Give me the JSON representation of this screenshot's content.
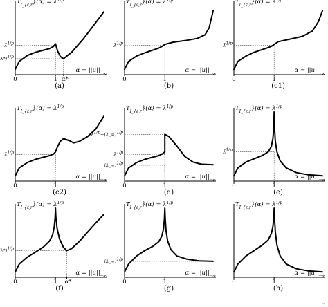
{
  "figure": {
    "footnote": "(a)"
  },
  "chart_data": [
    {
      "id": "a",
      "caption": "(a)",
      "type": "line",
      "title": "T_{I_{ε,r}}(α) = λ^{1/p}",
      "xlabel": "α = ||u||_∞",
      "x_ticks": [
        "0",
        "1",
        "α*"
      ],
      "y_labels": [
        "λ̄^{1/p}",
        "(λ*)^{1/p}"
      ],
      "y_label_pos": [
        0.55,
        0.3
      ],
      "guides": [
        [
          1,
          0.55
        ],
        [
          1.2,
          0.3
        ]
      ],
      "ylim": [
        0,
        1.3
      ],
      "xlim": [
        0,
        2.2
      ],
      "x": [
        0,
        0.1,
        0.3,
        0.5,
        0.7,
        0.85,
        0.95,
        1.0,
        1.05,
        1.12,
        1.2,
        1.4,
        1.7,
        2.0,
        2.2
      ],
      "y": [
        0.1,
        0.25,
        0.36,
        0.42,
        0.46,
        0.49,
        0.53,
        0.58,
        0.45,
        0.34,
        0.3,
        0.42,
        0.68,
        0.98,
        1.18
      ]
    },
    {
      "id": "b",
      "caption": "(b)",
      "type": "line",
      "title": "T_{I_{ε,r}}(α) = λ^{1/p}",
      "xlabel": "α = ||u||_∞",
      "x_ticks": [
        "0",
        "1"
      ],
      "y_labels": [
        "λ̄^{1/p}"
      ],
      "y_label_pos": [
        0.55
      ],
      "guides": [
        [
          1,
          0.55
        ]
      ],
      "ylim": [
        0,
        1.3
      ],
      "xlim": [
        0,
        2.2
      ],
      "x": [
        0,
        0.1,
        0.3,
        0.5,
        0.7,
        0.85,
        0.95,
        1.0,
        1.2,
        1.5,
        1.8,
        2.0,
        2.1,
        2.2
      ],
      "y": [
        0.1,
        0.25,
        0.35,
        0.41,
        0.46,
        0.5,
        0.54,
        0.57,
        0.61,
        0.64,
        0.68,
        0.75,
        0.88,
        1.2
      ]
    },
    {
      "id": "c1",
      "caption": "(c1)",
      "type": "line",
      "title": "T_{I_{ε,r}}(α) = λ^{1/p}",
      "xlabel": "α = ||u||_∞",
      "x_ticks": [
        "0",
        "1"
      ],
      "y_labels": [
        "λ̄^{1/p}"
      ],
      "y_label_pos": [
        0.55
      ],
      "guides": [
        [
          1,
          0.55
        ]
      ],
      "ylim": [
        0,
        1.3
      ],
      "xlim": [
        0,
        2.2
      ],
      "x": [
        0,
        0.1,
        0.3,
        0.5,
        0.7,
        0.85,
        0.95,
        1.0,
        1.1,
        1.4,
        1.7,
        1.95,
        2.1,
        2.2
      ],
      "y": [
        0.1,
        0.25,
        0.35,
        0.42,
        0.47,
        0.51,
        0.54,
        0.57,
        0.62,
        0.67,
        0.72,
        0.82,
        1.0,
        1.2
      ]
    },
    {
      "id": "c2",
      "caption": "(c2)",
      "type": "line",
      "title": "T_{I_{ε,r}}(α) = λ^{1/p}",
      "xlabel": "α = ||u||_∞",
      "x_ticks": [
        "0",
        "1"
      ],
      "y_labels": [
        "λ̄^{1/p}"
      ],
      "y_label_pos": [
        0.5
      ],
      "guides": [
        [
          1,
          0.5
        ]
      ],
      "ylim": [
        0,
        1.3
      ],
      "xlim": [
        0,
        2.2
      ],
      "x": [
        0,
        0.1,
        0.3,
        0.5,
        0.7,
        0.85,
        0.95,
        1.0,
        1.05,
        1.12,
        1.2,
        1.35,
        1.45,
        1.6,
        1.8,
        2.0,
        2.2
      ],
      "y": [
        0.1,
        0.25,
        0.35,
        0.41,
        0.45,
        0.48,
        0.51,
        0.55,
        0.65,
        0.75,
        0.8,
        0.76,
        0.72,
        0.75,
        0.84,
        0.98,
        1.22
      ]
    },
    {
      "id": "d",
      "caption": "(d)",
      "type": "line",
      "title": "T_{I_{ε,r}}(α) = λ^{1/p}",
      "xlabel": "α = ||u||_∞",
      "x_ticks": [
        "0",
        "1"
      ],
      "y_labels": [
        "λ̄^{1/p}+(λ_∞)^{1/p}",
        "λ̄^{1/p}",
        "(λ_∞)^{1/p}"
      ],
      "y_label_pos": [
        0.88,
        0.5,
        0.3
      ],
      "guides": [
        [
          1,
          0.88
        ],
        [
          1,
          0.5
        ],
        [
          1,
          0.3
        ]
      ],
      "ylim": [
        0,
        1.3
      ],
      "xlim": [
        0,
        2.2
      ],
      "x": [
        0,
        0.1,
        0.3,
        0.5,
        0.7,
        0.85,
        0.95,
        1.0,
        1.0,
        1.1,
        1.3,
        1.5,
        1.7,
        1.9,
        2.2
      ],
      "y": [
        0.1,
        0.25,
        0.35,
        0.41,
        0.45,
        0.48,
        0.52,
        0.55,
        0.88,
        0.84,
        0.66,
        0.46,
        0.36,
        0.32,
        0.31
      ]
    },
    {
      "id": "e",
      "caption": "(e)",
      "type": "line",
      "title": "T_{I_{ε,r}}(α) = λ^{1/p}",
      "xlabel": "α = ||u||_∞",
      "x_ticks": [
        "0",
        "1"
      ],
      "y_labels": [
        "λ̄^{1/p}"
      ],
      "y_label_pos": [
        0.55
      ],
      "guides": [
        [
          1,
          0.55
        ]
      ],
      "ylim": [
        0,
        1.3
      ],
      "xlim": [
        0,
        2.2
      ],
      "x": [
        0,
        0.1,
        0.3,
        0.5,
        0.7,
        0.85,
        0.93,
        0.97,
        0.99,
        1.0,
        1.0,
        1.01,
        1.03,
        1.07,
        1.15,
        1.3,
        1.55,
        1.85,
        2.2
      ],
      "y": [
        0.1,
        0.25,
        0.36,
        0.42,
        0.48,
        0.55,
        0.65,
        0.8,
        1.0,
        1.3,
        1.3,
        1.0,
        0.75,
        0.55,
        0.38,
        0.25,
        0.16,
        0.12,
        0.1
      ]
    },
    {
      "id": "f",
      "caption": "(f)",
      "type": "line",
      "title": "T_{I_{ε,r}}(α) = λ^{1/p}",
      "xlabel": "α = ||u||_∞",
      "x_ticks": [
        "0",
        "1",
        "α*"
      ],
      "y_labels": [
        "(λ*)^{1/p}"
      ],
      "y_label_pos": [
        0.5
      ],
      "guides": [
        [
          1.28,
          0.5
        ]
      ],
      "ylim": [
        0,
        1.3
      ],
      "xlim": [
        0,
        2.2
      ],
      "x": [
        0,
        0.1,
        0.3,
        0.5,
        0.7,
        0.85,
        0.93,
        0.97,
        0.99,
        1.0,
        1.0,
        1.01,
        1.04,
        1.1,
        1.2,
        1.28,
        1.4,
        1.6,
        1.8,
        2.0,
        2.2
      ],
      "y": [
        0.1,
        0.25,
        0.38,
        0.47,
        0.57,
        0.68,
        0.8,
        0.95,
        1.12,
        1.3,
        1.3,
        1.12,
        0.92,
        0.72,
        0.56,
        0.5,
        0.54,
        0.68,
        0.85,
        1.02,
        1.18
      ]
    },
    {
      "id": "g",
      "caption": "(g)",
      "type": "line",
      "title": "T_{I_{ε,r}}(α) = λ^{1/p}",
      "xlabel": "α = ||u||_∞",
      "x_ticks": [
        "0",
        "1"
      ],
      "y_labels": [
        "(λ_∞)^{1/p}"
      ],
      "y_label_pos": [
        0.3
      ],
      "guides": [
        [
          2.2,
          0.3
        ]
      ],
      "ylim": [
        0,
        1.3
      ],
      "xlim": [
        0,
        2.2
      ],
      "x": [
        0,
        0.1,
        0.3,
        0.5,
        0.7,
        0.85,
        0.93,
        0.97,
        0.99,
        1.0,
        1.0,
        1.01,
        1.03,
        1.07,
        1.15,
        1.3,
        1.55,
        1.85,
        2.2
      ],
      "y": [
        0.1,
        0.25,
        0.4,
        0.5,
        0.58,
        0.67,
        0.78,
        0.92,
        1.1,
        1.3,
        1.3,
        1.1,
        0.88,
        0.68,
        0.52,
        0.4,
        0.34,
        0.31,
        0.3
      ]
    },
    {
      "id": "h",
      "caption": "(h)",
      "type": "line",
      "title": "T_{I_{ε,r}}(α) = λ^{1/p}",
      "xlabel": "α = ||u||_∞",
      "x_ticks": [
        "0",
        "1"
      ],
      "y_labels": [],
      "y_label_pos": [],
      "guides": [],
      "ylim": [
        0,
        1.3
      ],
      "xlim": [
        0,
        2.2
      ],
      "x": [
        0,
        0.1,
        0.3,
        0.5,
        0.7,
        0.85,
        0.93,
        0.97,
        0.99,
        1.0,
        1.0,
        1.01,
        1.03,
        1.07,
        1.15,
        1.3,
        1.55,
        1.85,
        2.2
      ],
      "y": [
        0.1,
        0.25,
        0.4,
        0.5,
        0.6,
        0.7,
        0.82,
        0.95,
        1.12,
        1.3,
        1.3,
        1.1,
        0.85,
        0.6,
        0.4,
        0.25,
        0.16,
        0.12,
        0.1
      ]
    }
  ]
}
